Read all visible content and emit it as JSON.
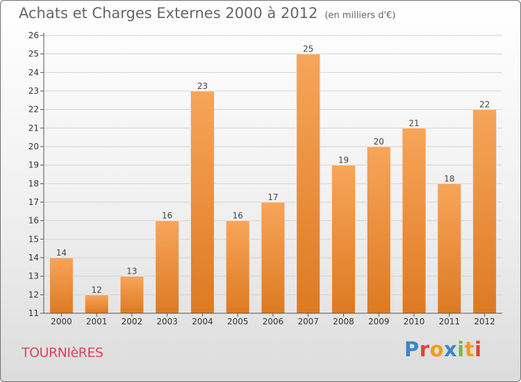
{
  "header": {
    "title": "Achats et Charges Externes 2000 à 2012",
    "unit": "(en milliers d'€)"
  },
  "footer": {
    "commune": "TOURNIèRES",
    "logo": [
      "P",
      "r",
      "o",
      "x",
      "i",
      "t",
      "i"
    ]
  },
  "colors": {
    "bar_top": "#f7a55a",
    "bar_bottom": "#dd7a22",
    "bar_stroke": "#e8e8e8",
    "grid": "#d4d4d4",
    "axis": "#555555",
    "title": "#666666",
    "commune": "#d9475a",
    "logo": [
      "#3a86c8",
      "#e3432d",
      "#f39c12",
      "#3a86c8",
      "#7ab83a",
      "#f39c12",
      "#e3432d"
    ]
  },
  "chart_data": {
    "type": "bar",
    "title": "Achats et Charges Externes 2000 à 2012",
    "xlabel": "",
    "ylabel": "",
    "categories": [
      "2000",
      "2001",
      "2002",
      "2003",
      "2004",
      "2005",
      "2006",
      "2007",
      "2008",
      "2009",
      "2010",
      "2011",
      "2012"
    ],
    "values": [
      14,
      12,
      13,
      16,
      23,
      16,
      17,
      25,
      19,
      20,
      21,
      18,
      22
    ],
    "ylim": [
      11,
      26
    ],
    "yticks": [
      11,
      12,
      13,
      14,
      15,
      16,
      17,
      18,
      19,
      20,
      21,
      22,
      23,
      24,
      25,
      26
    ],
    "grid": true,
    "legend": "none"
  }
}
